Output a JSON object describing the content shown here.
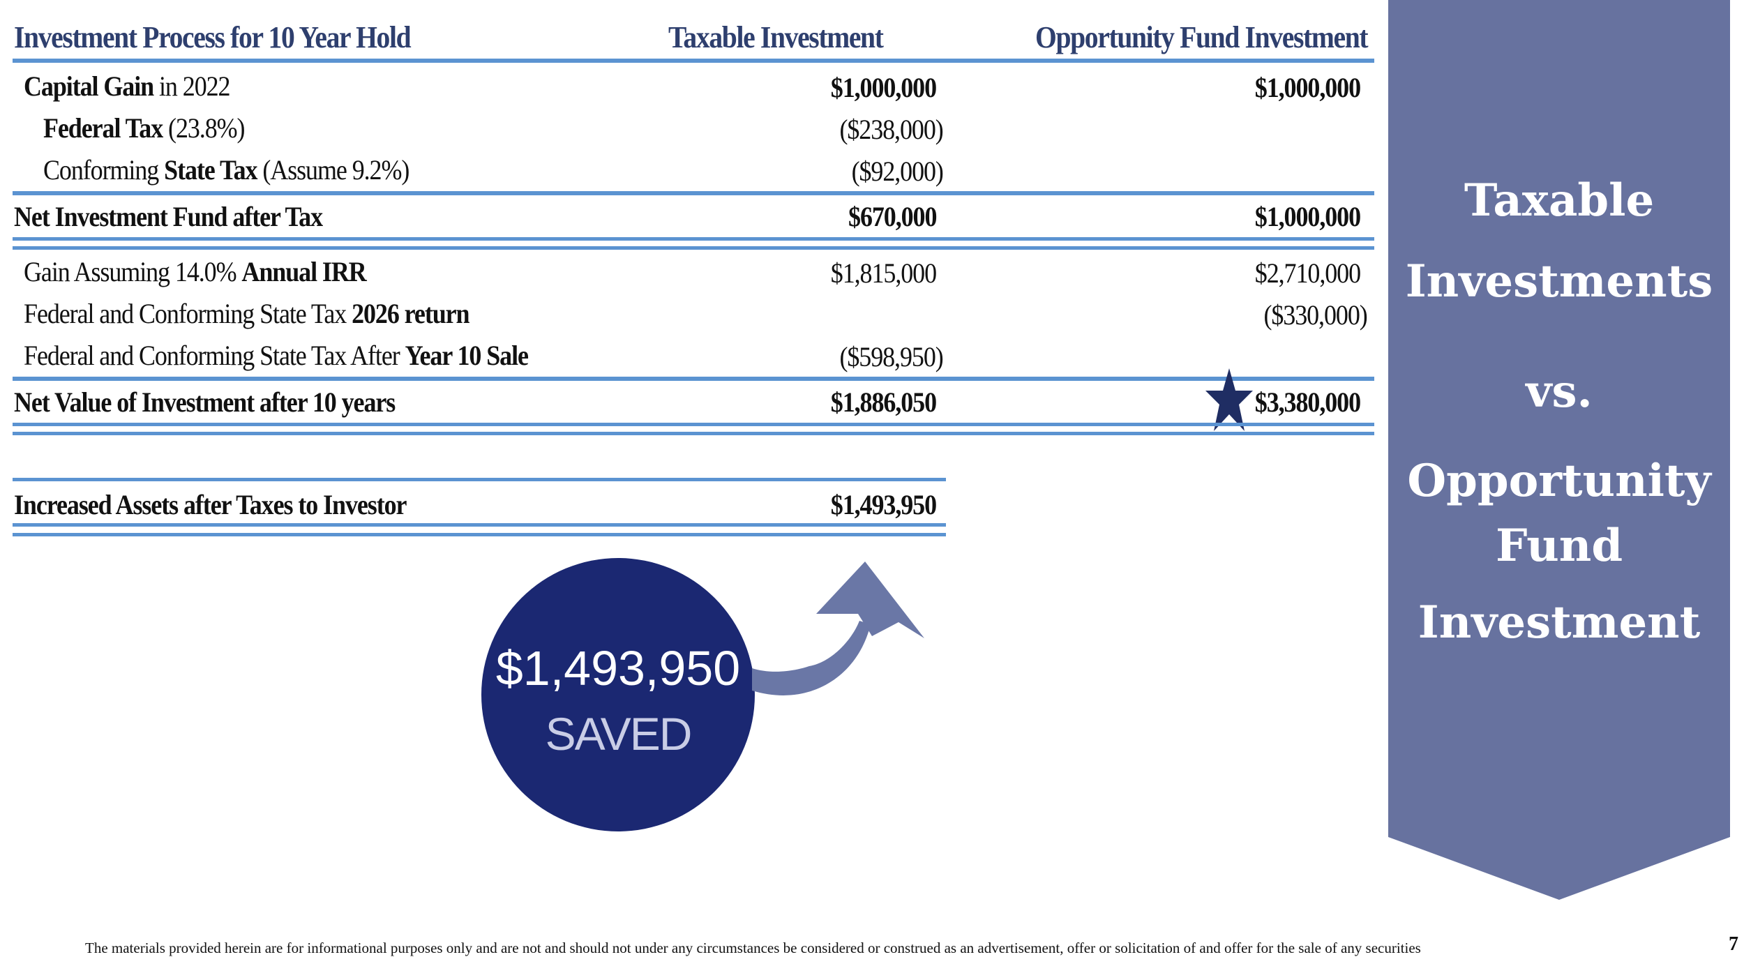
{
  "header": {
    "col1": "Investment Process for 10 Year Hold",
    "col2": "Taxable Investment",
    "col3": "Opportunity Fund Investment"
  },
  "rows": [
    {
      "label_bold": "Capital Gain",
      "label_rest": " in 2022",
      "taxable": "$1,000,000",
      "opportunity": "$1,000,000"
    },
    {
      "label_bold": "Federal Tax",
      "label_rest": " (23.8%)",
      "taxable": "($238,000)",
      "opportunity": ""
    },
    {
      "label_pre": "Conforming ",
      "label_bold": "State Tax",
      "label_rest": " (Assume 9.2%)",
      "taxable": "($92,000)",
      "opportunity": ""
    },
    {
      "label": "Net Investment Fund after Tax",
      "taxable": "$670,000",
      "opportunity": "$1,000,000"
    },
    {
      "label_pre": "Gain Assuming 14.0% ",
      "label_bold": "Annual IRR",
      "taxable": "$1,815,000",
      "opportunity": "$2,710,000"
    },
    {
      "label_pre": "Federal and Conforming State Tax ",
      "label_bold": "2026 return",
      "taxable": "",
      "opportunity": "($330,000)"
    },
    {
      "label_pre": "Federal and Conforming State Tax After ",
      "label_bold": "Year 10 Sale",
      "taxable": "($598,950)",
      "opportunity": ""
    },
    {
      "label": "Net Value of Investment after 10 years",
      "taxable": "$1,886,050",
      "opportunity": "$3,380,000"
    }
  ],
  "increased": {
    "label": "Increased Assets after Taxes to Investor",
    "value": "$1,493,950"
  },
  "circle": {
    "amount": "$1,493,950",
    "caption": "SAVED"
  },
  "banner": {
    "line1": "Taxable",
    "line2": "Investments",
    "line3": "vs.",
    "line4": "Opportunity",
    "line5": "Fund",
    "line6": "Investment"
  },
  "footer": {
    "disclaimer": "The materials provided herein are for informational purposes only and are not and should not under any circumstances be considered or construed as an advertisement, offer or solicitation of and offer for the sale of any securities",
    "page": "7"
  },
  "colors": {
    "rule": "#5b93d1",
    "banner": "#67729f",
    "circle": "#1b2872",
    "arrow": "#6a77a6",
    "star": "#1f2d63",
    "header_text": "#2e3f6e"
  },
  "icons": {
    "star": "star-icon",
    "arrow": "curved-arrow-icon"
  }
}
